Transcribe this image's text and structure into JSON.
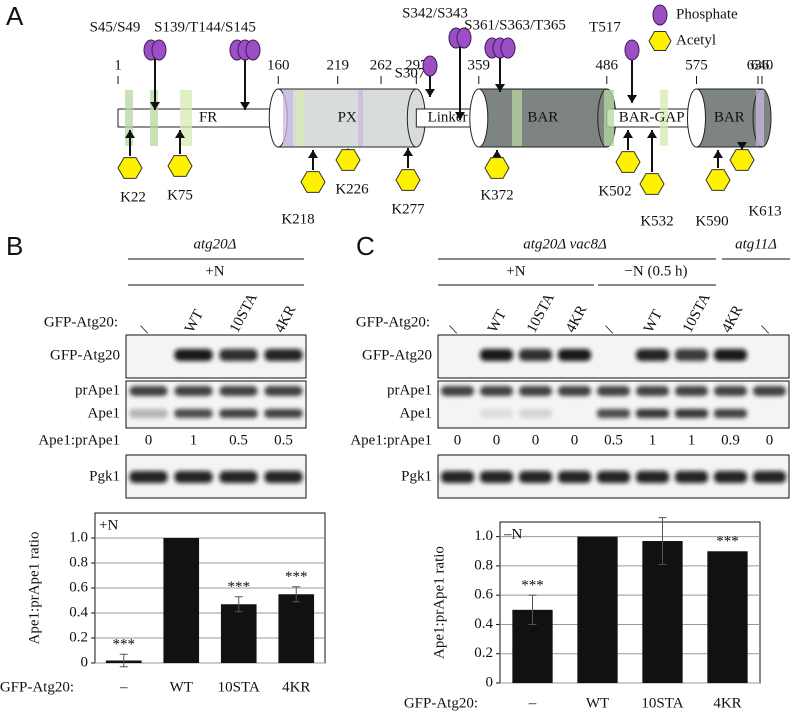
{
  "panel_a": {
    "label": "A",
    "residues": [
      1,
      160,
      219,
      262,
      297,
      359,
      486,
      575,
      636,
      640
    ],
    "domains": [
      "FR",
      "PX",
      "Linker",
      "BAR",
      "BAR-GAP",
      "BAR"
    ],
    "phosphosites": [
      "S45/S49",
      "S139/T144/S145",
      "S307",
      "S342/S343",
      "S361/S363/T365",
      "T517"
    ],
    "acetyl_sites": [
      "K22",
      "K75",
      "K218",
      "K226",
      "K277",
      "K372",
      "K502",
      "K532",
      "K590",
      "K613"
    ],
    "legend": [
      "Phosphate",
      "Acetyl"
    ]
  },
  "panel_b": {
    "label": "B",
    "strain": "atg20Δ",
    "condition": "+N",
    "lane_header": "GFP-Atg20:",
    "lanes": [
      "/",
      "WT",
      "10STA",
      "4KR"
    ],
    "blots": [
      "GFP-Atg20",
      "prApe1",
      "Ape1",
      "Pgk1"
    ],
    "ratio_label": "Ape1:prApe1",
    "ratios": [
      0,
      1,
      0.5,
      0.5
    ]
  },
  "panel_c": {
    "label": "C",
    "strain": "atg20Δ vac8Δ",
    "strain2": "atg11Δ",
    "conditions": [
      "+N",
      "−N (0.5 h)"
    ],
    "lane_header": "GFP-Atg20:",
    "lanes": [
      "/",
      "WT",
      "10STA",
      "4KR",
      "/",
      "WT",
      "10STA",
      "4KR",
      "/"
    ],
    "blots": [
      "GFP-Atg20",
      "prApe1",
      "Ape1",
      "Pgk1"
    ],
    "ratio_label": "Ape1:prApe1",
    "ratios": [
      0,
      0,
      0,
      0,
      0.5,
      1,
      1,
      0.9,
      0
    ]
  },
  "chart_data": [
    {
      "type": "bar",
      "title": "+N",
      "y_label": "Ape1:prApe1 ratio",
      "x_label": "GFP-Atg20:",
      "categories": [
        "–",
        "WT",
        "10STA",
        "4KR"
      ],
      "values": [
        0.02,
        1,
        0.47,
        0.55
      ],
      "errors": [
        0.05,
        null,
        0.06,
        0.06
      ],
      "significance": [
        "***",
        null,
        "***",
        "***"
      ],
      "color": "#111111",
      "ylim": [
        0,
        1.2
      ],
      "yticks": [
        0,
        0.2,
        0.4,
        0.6,
        0.8,
        {
          "value": 1,
          "label": "1.0"
        }
      ],
      "grid": true
    },
    {
      "type": "bar",
      "title": "–N",
      "y_label": "Ape1:prApe1 ratio",
      "x_label": "GFP-Atg20:",
      "categories": [
        "–",
        "WT",
        "10STA",
        "4KR"
      ],
      "values": [
        0.5,
        1,
        0.97,
        0.9
      ],
      "errors": [
        0.1,
        null,
        0.16,
        null
      ],
      "significance": [
        "***",
        null,
        null,
        "***"
      ],
      "color": "#111111",
      "ylim": [
        0,
        1.1
      ],
      "yticks": [
        0,
        0.2,
        0.4,
        0.6,
        0.8,
        {
          "value": 1,
          "label": "1.0"
        }
      ],
      "grid": true
    }
  ]
}
